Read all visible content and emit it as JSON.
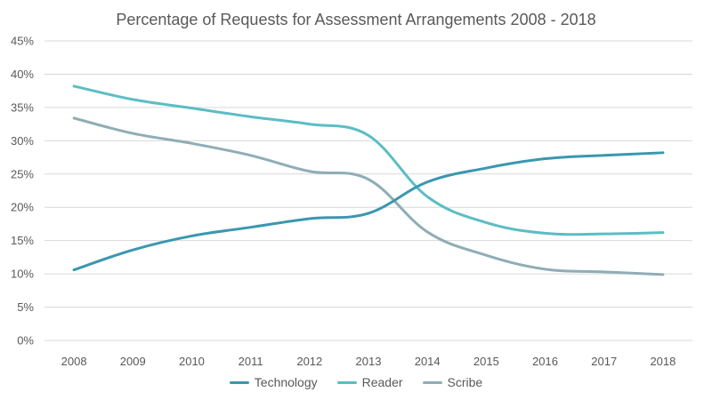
{
  "chart_data": {
    "type": "line",
    "title": "Percentage of Requests for Assessment Arrangements 2008 - 2018",
    "xlabel": "",
    "ylabel": "",
    "categories": [
      "2008",
      "2009",
      "2010",
      "2011",
      "2012",
      "2013",
      "2014",
      "2015",
      "2016",
      "2017",
      "2018"
    ],
    "ylim": [
      0,
      45
    ],
    "y_ticks": [
      0,
      5,
      10,
      15,
      20,
      25,
      30,
      35,
      40,
      45
    ],
    "y_tick_labels": [
      "0%",
      "5%",
      "10%",
      "15%",
      "20%",
      "25%",
      "30%",
      "35%",
      "40%",
      "45%"
    ],
    "grid": true,
    "legend_position": "bottom",
    "series": [
      {
        "name": "Technology",
        "color": "#3a97b0",
        "values": [
          10.6,
          13.6,
          15.7,
          17.0,
          18.3,
          19.1,
          23.8,
          25.9,
          27.3,
          27.8,
          28.2
        ]
      },
      {
        "name": "Reader",
        "color": "#5bbdc4",
        "values": [
          38.2,
          36.2,
          34.9,
          33.6,
          32.5,
          30.8,
          21.6,
          17.7,
          16.1,
          16.0,
          16.2
        ]
      },
      {
        "name": "Scribe",
        "color": "#8fadb5",
        "values": [
          33.4,
          31.1,
          29.6,
          27.8,
          25.4,
          24.2,
          16.3,
          12.8,
          10.7,
          10.3,
          9.9
        ]
      }
    ]
  }
}
